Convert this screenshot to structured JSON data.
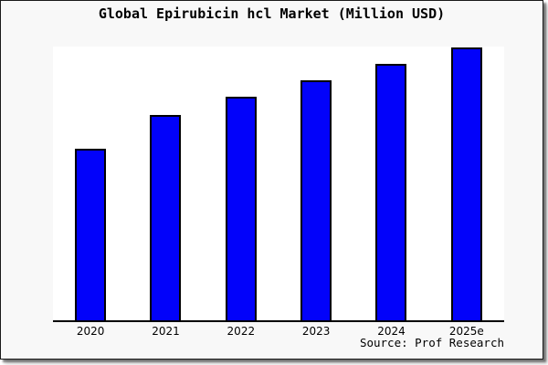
{
  "figure": {
    "title": "Global Epirubicin hcl Market (Million USD)",
    "source": "Source: Prof Research",
    "background_color": "#f8f8f8",
    "plot_background_color": "#ffffff",
    "frame_border_color": "#1a1a1a"
  },
  "chart_data": {
    "type": "bar",
    "title": "Global Epirubicin hcl Market (Million USD)",
    "categories": [
      "2020",
      "2021",
      "2022",
      "2023",
      "2024",
      "2025e"
    ],
    "values_relative_pct": [
      62.7,
      75.0,
      81.7,
      87.7,
      93.7,
      99.7
    ],
    "value_axis_note": "no y-axis ticks, labels or gridlines shown; values are bar heights as % of plot height",
    "xlabel": "",
    "ylabel": "",
    "legend": "none",
    "grid": false,
    "bar_color": "#0202fa",
    "bar_border_color": "#000000",
    "axis_line_color": "#000000",
    "source": "Source: Prof Research"
  }
}
